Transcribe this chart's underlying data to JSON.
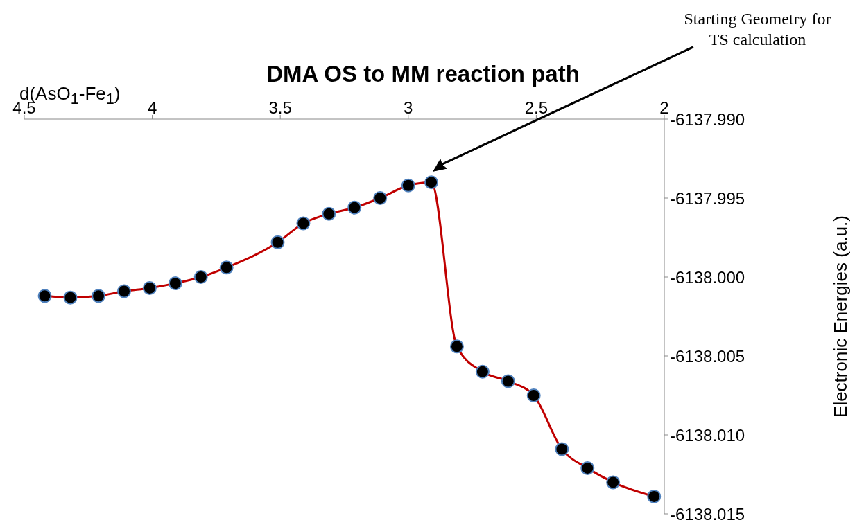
{
  "chart_data": {
    "type": "line",
    "title": "DMA OS to MM reaction path",
    "xlabel": "d(AsO$_{1}$-Fe$_{1}$)",
    "ylabel": "Electronic Energies (a.u.)",
    "x": [
      4.42,
      4.32,
      4.21,
      4.11,
      4.01,
      3.91,
      3.81,
      3.71,
      3.51,
      3.41,
      3.31,
      3.21,
      3.11,
      3.0,
      2.91,
      2.81,
      2.71,
      2.61,
      2.51,
      2.4,
      2.3,
      2.2,
      2.04
    ],
    "series": [
      {
        "color": "#c00000",
        "values": [
          -6138.0012,
          -6138.0013,
          -6138.0012,
          -6138.0009,
          -6138.0007,
          -6138.0004,
          -6138.0,
          -6137.9994,
          -6137.9978,
          -6137.9966,
          -6137.996,
          -6137.9956,
          -6137.995,
          -6137.9942,
          -6137.994,
          -6138.0044,
          -6138.006,
          -6138.0066,
          -6138.0075,
          -6138.0109,
          -6138.0121,
          -6138.013,
          -6138.0139
        ]
      }
    ],
    "xlim": [
      4.5,
      2
    ],
    "xticks": [
      4.5,
      4,
      3.5,
      3,
      2.5,
      2
    ],
    "ylim": [
      -6138.015,
      -6137.99
    ],
    "yticks": [
      {
        "value": -6138.015,
        "label": "-6138.015"
      },
      {
        "value": -6138.01,
        "label": "-6138.010"
      },
      {
        "value": -6138.005,
        "label": "-6138.005"
      },
      {
        "value": -6138.0,
        "label": "-6138.000"
      },
      {
        "value": -6137.995,
        "label": "-6137.995"
      },
      {
        "value": -6137.99,
        "label": "-6137.990"
      }
    ],
    "marker": "circle",
    "grid": false,
    "legend": false,
    "annotations": [
      "Starting Geometry for TS calculation"
    ]
  }
}
